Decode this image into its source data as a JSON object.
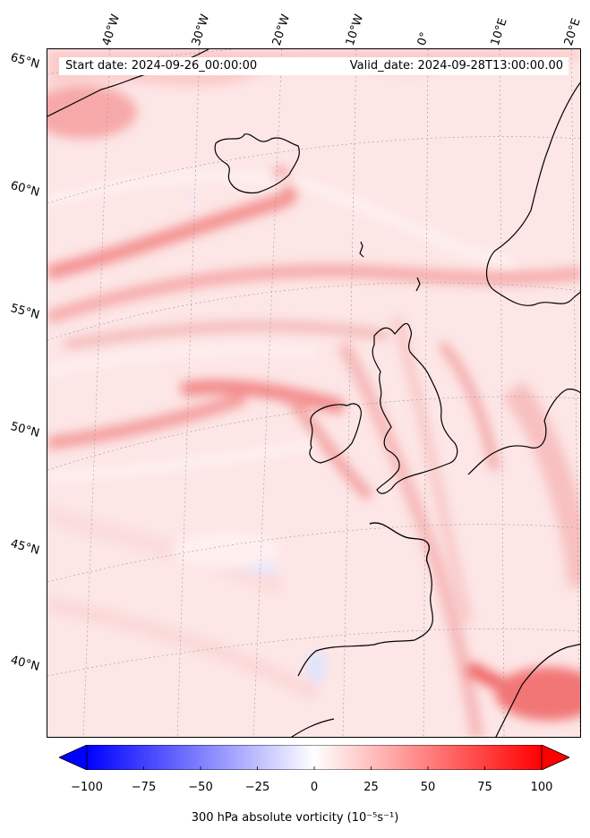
{
  "header": {
    "start_date": "Start date: 2024-09-26_00:00:00",
    "valid_date": "Valid_date: 2024-09-28T13:00:00.00"
  },
  "longitude_labels": [
    "40°W",
    "30°W",
    "20°W",
    "10°W",
    "0°",
    "10°E",
    "20°E"
  ],
  "latitude_labels": [
    "65°N",
    "60°N",
    "55°N",
    "50°N",
    "45°N",
    "40°N"
  ],
  "colorbar": {
    "label": "300 hPa absolute vorticity (10⁻⁵s⁻¹)",
    "ticks": [
      "−100",
      "−75",
      "−50",
      "−25",
      "0",
      "25",
      "50",
      "75",
      "100"
    ],
    "tick_values": [
      -100,
      -75,
      -50,
      -25,
      0,
      25,
      50,
      75,
      100
    ],
    "range": [
      -100,
      100
    ],
    "colormap": "bwr",
    "extend": "both",
    "low_color": "#0000ff",
    "mid_color": "#ffffff",
    "high_color": "#ff0000"
  },
  "map": {
    "field": "300 hPa absolute vorticity",
    "projection": "conic",
    "gridlines": "dotted",
    "coastline_color": "#000000"
  }
}
